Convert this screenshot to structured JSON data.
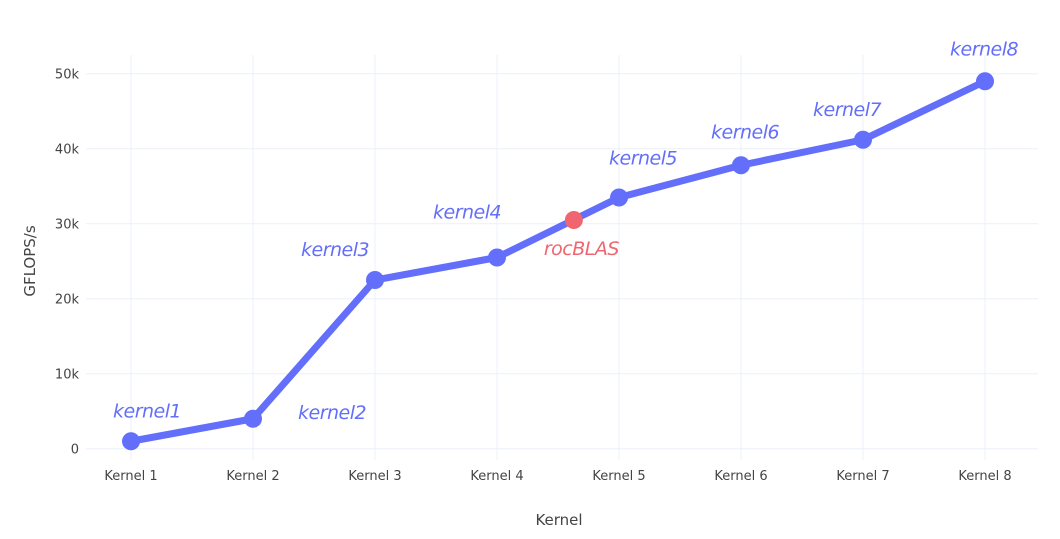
{
  "chart_data": {
    "type": "line",
    "categories": [
      "Kernel 1",
      "Kernel 2",
      "Kernel 3",
      "Kernel 4",
      "Kernel 5",
      "Kernel 6",
      "Kernel 7",
      "Kernel 8"
    ],
    "series": [
      {
        "values": [
          1000,
          4000,
          22500,
          25500,
          33500,
          37800,
          41200,
          49000
        ],
        "color": "#636efa"
      }
    ],
    "xlabel": "Kernel",
    "ylabel": "GFLOPS/s",
    "ylim": [
      -1500,
      52500
    ],
    "yticks": [
      0,
      10000,
      20000,
      30000,
      40000,
      50000
    ],
    "ytick_labels": [
      "0",
      "10k",
      "20k",
      "30k",
      "40k",
      "50k"
    ],
    "grid": true,
    "annotations": [
      {
        "text": "kernel1",
        "x_index": 0,
        "color": "#636efa"
      },
      {
        "text": "kernel2",
        "x_index": 1,
        "color": "#636efa"
      },
      {
        "text": "kernel3",
        "x_index": 2,
        "color": "#636efa"
      },
      {
        "text": "kernel4",
        "x_index": 3,
        "color": "#636efa"
      },
      {
        "text": "kernel5",
        "x_index": 4,
        "color": "#636efa"
      },
      {
        "text": "kernel6",
        "x_index": 5,
        "color": "#636efa"
      },
      {
        "text": "kernel7",
        "x_index": 6,
        "color": "#636efa"
      },
      {
        "text": "kernel8",
        "x_index": 7,
        "color": "#636efa"
      }
    ],
    "reference_point": {
      "text": "rocBLAS",
      "x_position": 3.63,
      "value": 30500,
      "color": "#ef6670"
    }
  }
}
